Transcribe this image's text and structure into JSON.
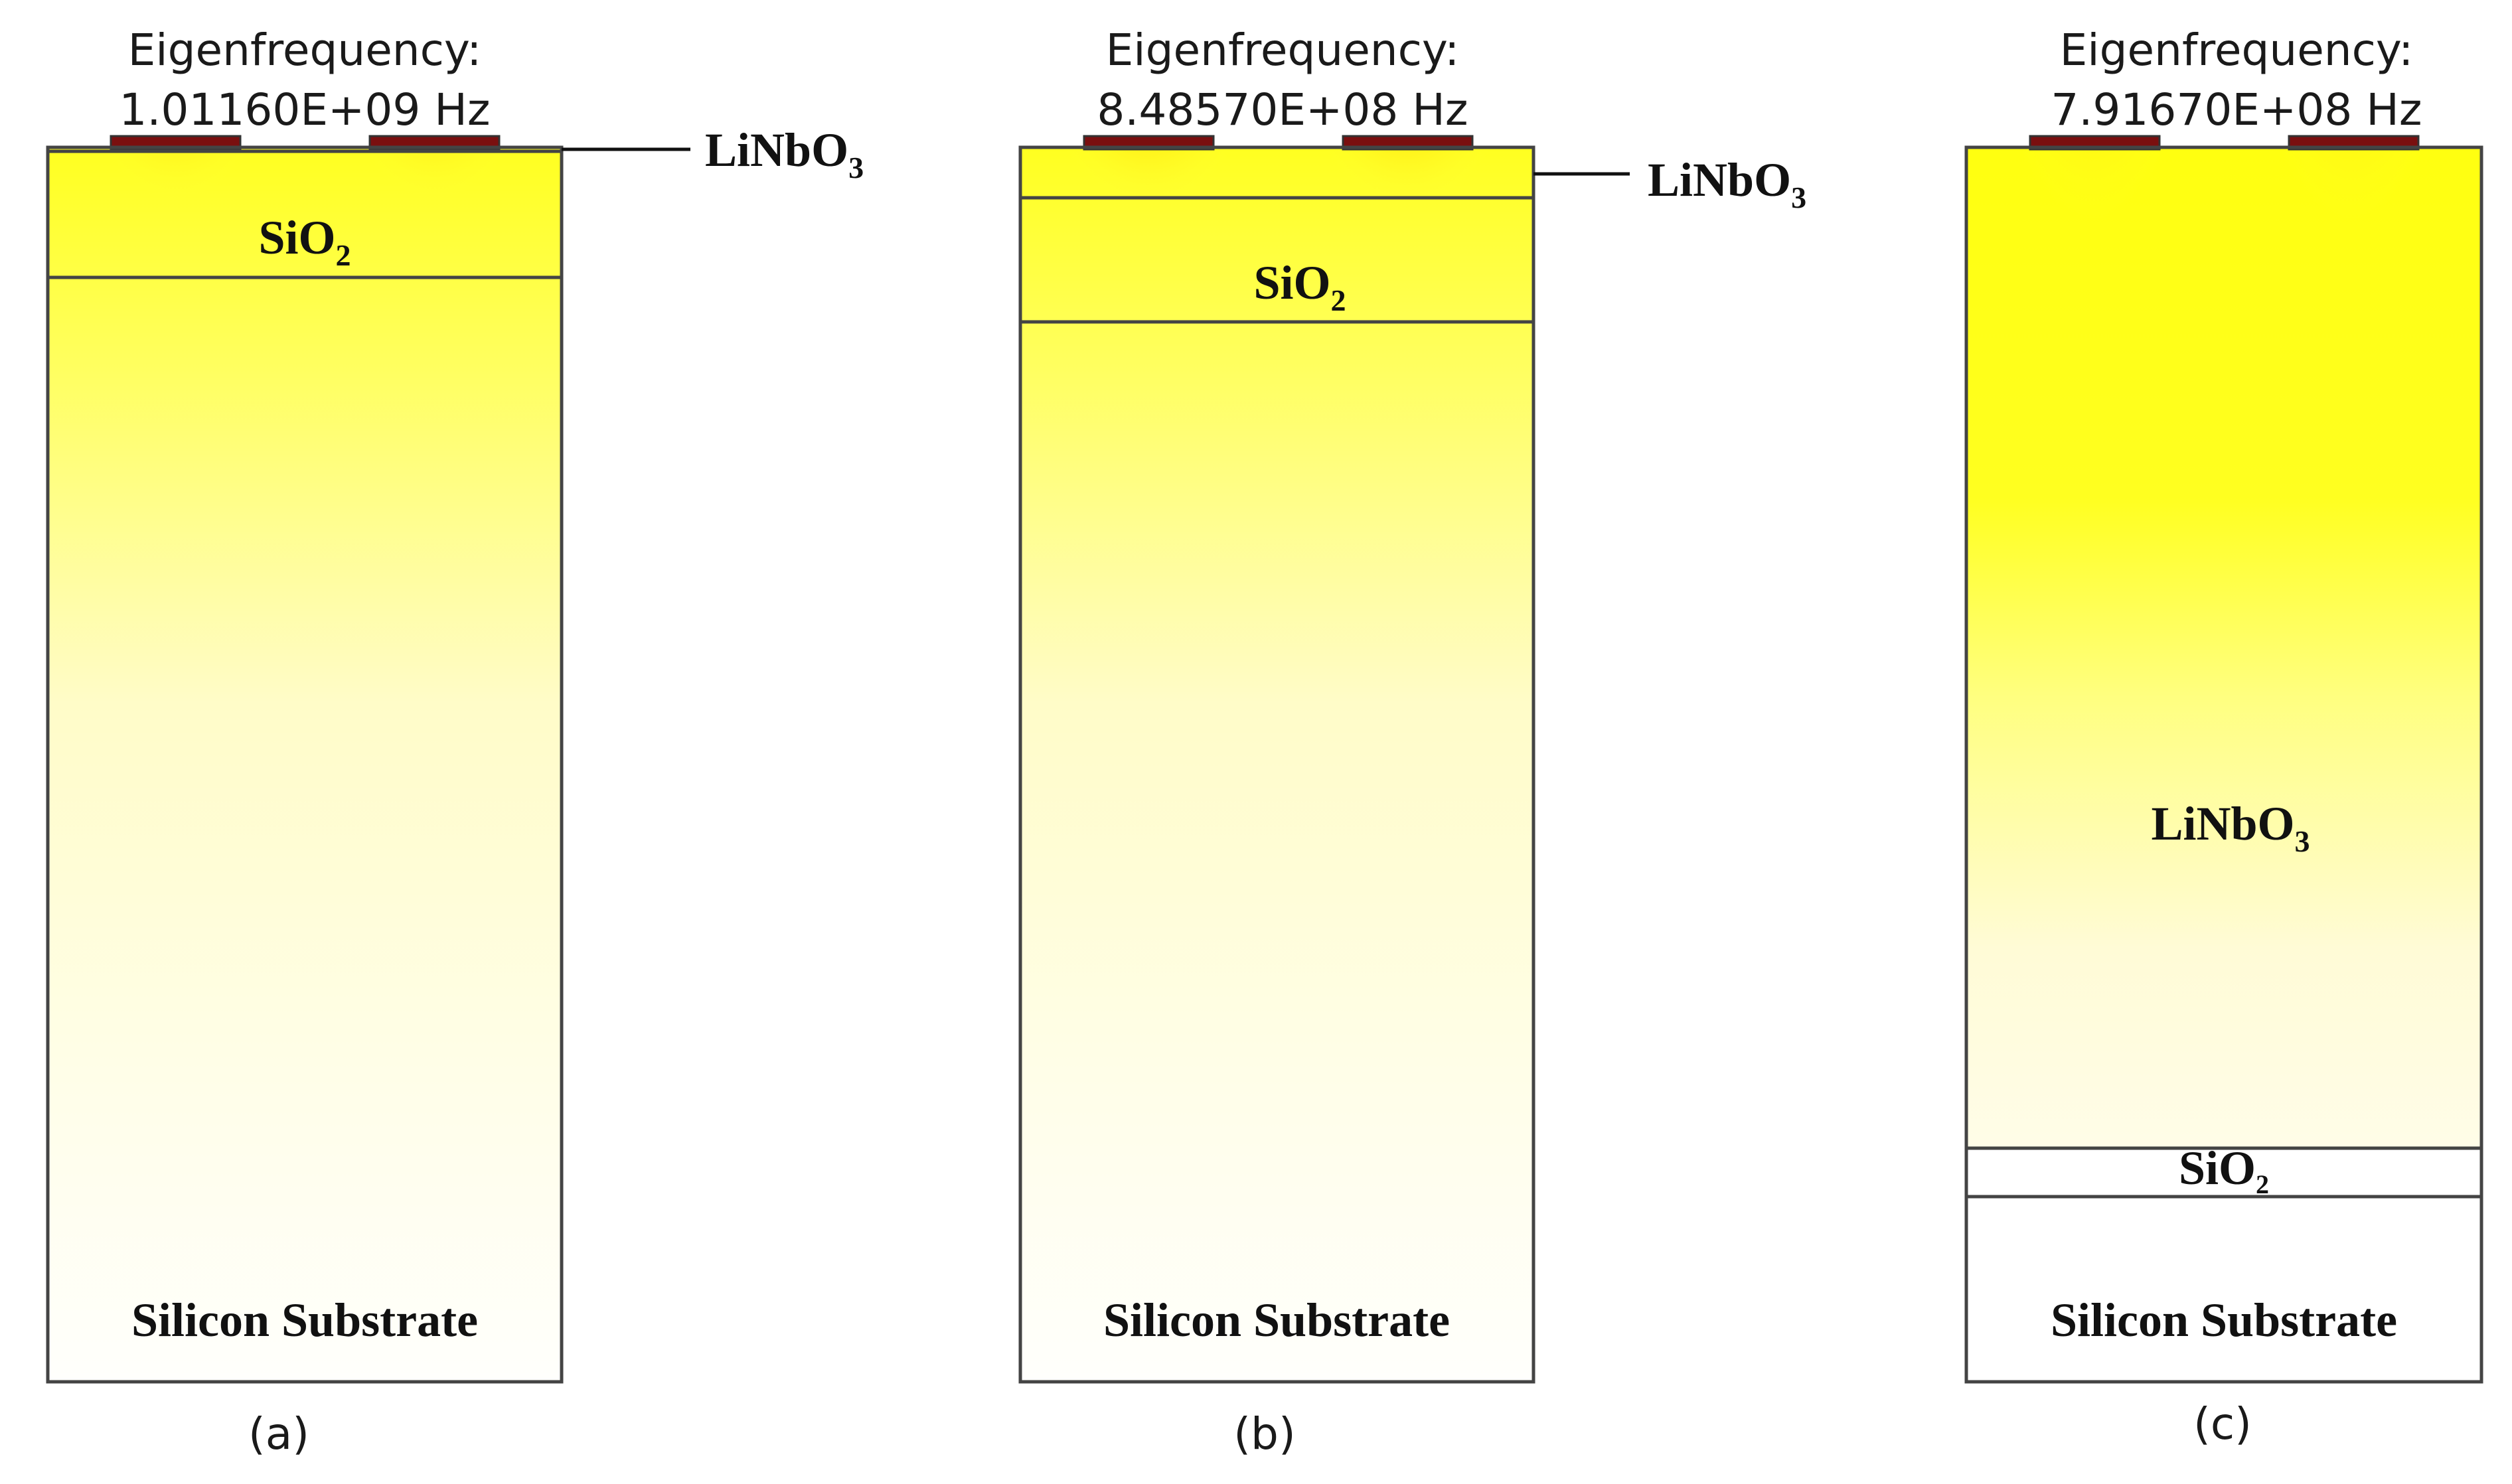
{
  "colors": {
    "map_low": "#fffef4",
    "map_mid": "#ffff10",
    "map_high_1": "#ff3600",
    "map_high_2": "#a00000",
    "map_peak": "#000000",
    "electrode": "#7a0f0f",
    "boundary": "#444444"
  },
  "panels": [
    {
      "id": "a",
      "eigen_label": "Eigenfrequency:",
      "eigen_value": "1.01160E+09 Hz",
      "layer_label_main": "SiO",
      "layer_sub_main": "2",
      "callout_main": "LiNbO",
      "callout_sub": "3",
      "substrate_label": "Silicon Substrate",
      "caption": "(a)"
    },
    {
      "id": "b",
      "eigen_label": "Eigenfrequency:",
      "eigen_value": "8.48570E+08 Hz",
      "layer_label_main": "SiO",
      "layer_sub_main": "2",
      "callout_main": "LiNbO",
      "callout_sub": "3",
      "substrate_label": "Silicon Substrate",
      "caption": "(b)"
    },
    {
      "id": "c",
      "eigen_label": "Eigenfrequency:",
      "eigen_value": "7.91670E+08 Hz",
      "layer_label_main": "LiNbO",
      "layer_sub_main": "3",
      "layer_label_thin": "SiO",
      "layer_sub_thin": "2",
      "substrate_label": "Silicon Substrate",
      "caption": "(c)"
    }
  ]
}
